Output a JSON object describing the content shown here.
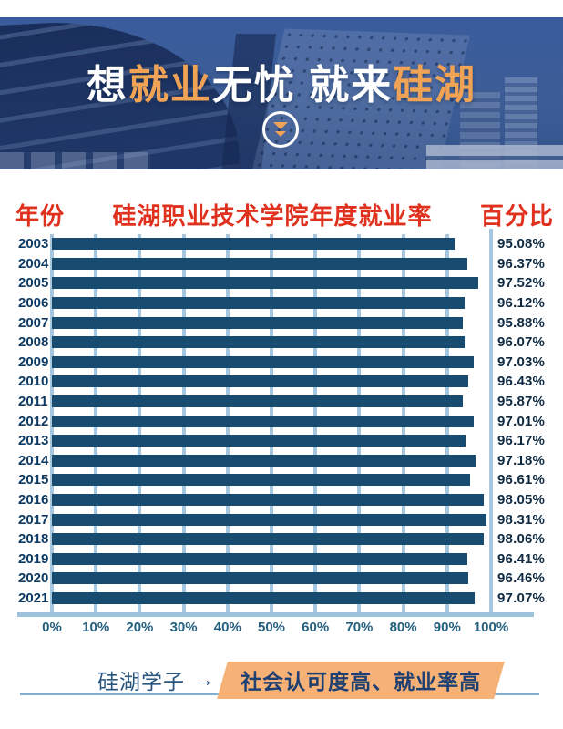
{
  "banner": {
    "headline_segments": [
      {
        "text": "想",
        "tone": "white"
      },
      {
        "text": "就业",
        "tone": "orange"
      },
      {
        "text": "无忧 ",
        "tone": "white"
      },
      {
        "text": "就来",
        "tone": "white"
      },
      {
        "text": "硅湖",
        "tone": "orange"
      }
    ],
    "scroll_icon": "double-chevron-down-icon"
  },
  "chart_header": {
    "left": "年份",
    "center": "硅湖职业技术学院年度就业率",
    "right": "百分比"
  },
  "chart_data": {
    "type": "bar",
    "orientation": "horizontal",
    "title": "硅湖职业技术学院年度就业率",
    "xlabel": "百分比",
    "ylabel": "年份",
    "categories": [
      "2003",
      "2004",
      "2005",
      "2006",
      "2007",
      "2008",
      "2009",
      "2010",
      "2011",
      "2012",
      "2013",
      "2014",
      "2015",
      "2016",
      "2017",
      "2018",
      "2019",
      "2020",
      "2021"
    ],
    "values": [
      95.08,
      96.37,
      97.52,
      96.12,
      95.88,
      96.07,
      97.03,
      96.43,
      95.87,
      97.01,
      96.17,
      97.18,
      96.61,
      98.05,
      98.31,
      98.06,
      96.41,
      96.46,
      97.07
    ],
    "value_labels": [
      "95.08%",
      "96.37%",
      "97.52%",
      "96.12%",
      "95.88%",
      "96.07%",
      "97.03%",
      "96.43%",
      "95.87%",
      "97.01%",
      "96.17%",
      "97.18%",
      "96.61%",
      "98.05%",
      "98.31%",
      "98.06%",
      "96.41%",
      "96.46%",
      "97.07%"
    ],
    "x_ticks": [
      "0%",
      "10%",
      "20%",
      "30%",
      "40%",
      "50%",
      "60%",
      "70%",
      "80%",
      "90%",
      "100%"
    ],
    "xlim": [
      0,
      100
    ],
    "grid": true,
    "legend": false,
    "bar_color": "#174b70",
    "grid_color": "#a6c7e0",
    "axis_color": "#9dc2dc",
    "tick_color": "#26607f",
    "label_color": "#0e2940"
  },
  "footer": {
    "label": "硅湖学子",
    "arrow": "→",
    "highlight": "社会认可度高、就业率高",
    "highlight_bg": "#f6b276"
  },
  "colors": {
    "header_red": "#e0301e",
    "banner_blue": "#3c5f9e",
    "accent_orange": "#f0a355",
    "navy": "#1e3f72"
  }
}
